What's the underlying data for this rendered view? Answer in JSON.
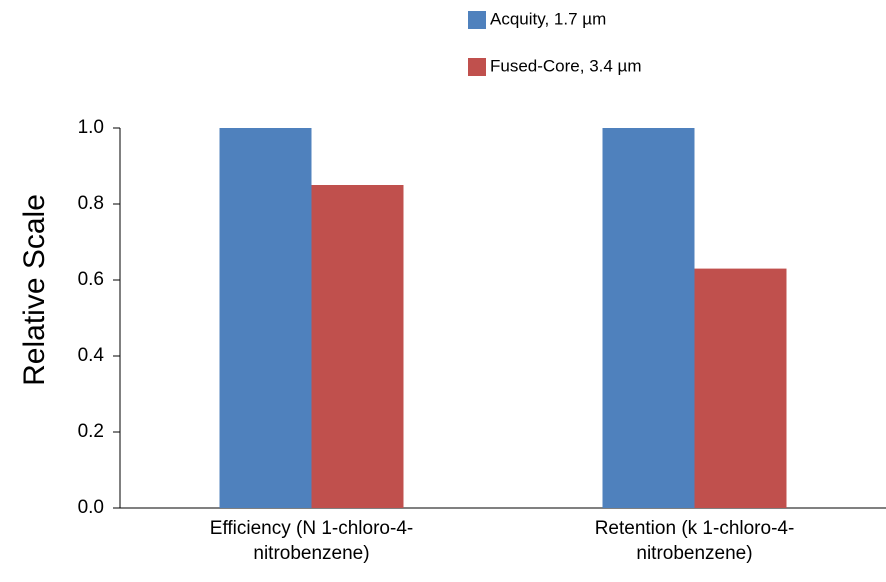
{
  "chart_data": {
    "type": "bar",
    "y_label": "Relative Scale",
    "categories": [
      "Efficiency (N  1-chloro-4-\nnitrobenzene)",
      "Retention (k 1-chloro-4-\nnitrobenzene)"
    ],
    "series": [
      {
        "name": "Acquity, 1.7 µm",
        "color": "#4f81bd",
        "values": [
          1.0,
          1.0
        ]
      },
      {
        "name": "Fused-Core, 3.4 µm",
        "color": "#c0504d",
        "values": [
          0.85,
          0.63
        ]
      }
    ],
    "ylim": [
      0,
      1.0
    ],
    "yticks": [
      {
        "value": 0,
        "label": "0.0"
      },
      0.2,
      0.4,
      0.6,
      0.8,
      {
        "value": 1.0,
        "label": "1.0"
      }
    ],
    "grid": false,
    "legend": "top-right"
  }
}
